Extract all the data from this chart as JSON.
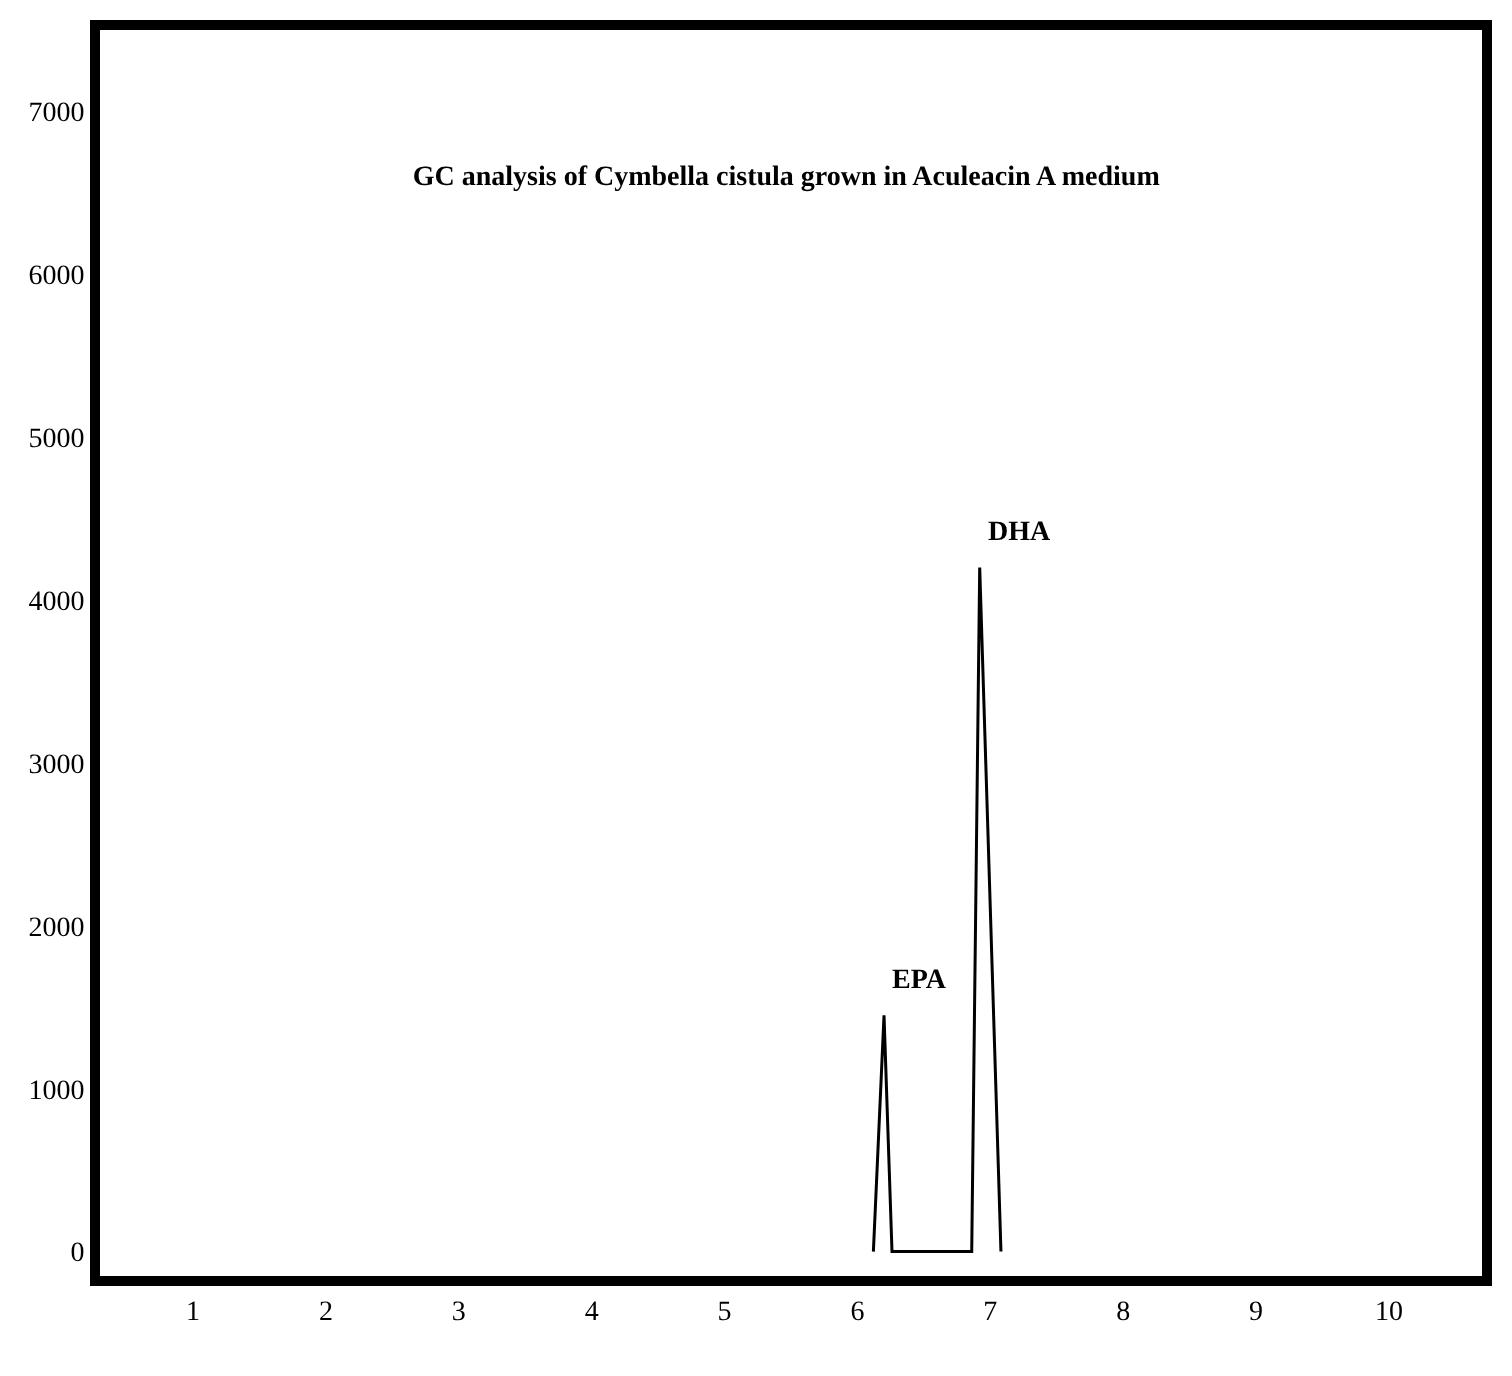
{
  "chart_data": {
    "type": "line",
    "title": "GC analysis of Cymbella cistula grown in Aculeacin A medium",
    "x": [
      6.12,
      6.2,
      6.26,
      6.86,
      6.92,
      7.08
    ],
    "series": [
      {
        "color": "#000000",
        "values": [
          0,
          1450,
          0,
          0,
          4200,
          0
        ]
      }
    ],
    "xlim": [
      0.3,
      10.7
    ],
    "xticks": [
      1,
      2,
      3,
      4,
      5,
      6,
      7,
      8,
      9,
      10
    ],
    "ylim": [
      -150,
      7500
    ],
    "yticks": [
      0,
      1000,
      2000,
      3000,
      4000,
      5000,
      6000,
      7000
    ],
    "annotations": [
      {
        "text": "EPA",
        "x": 6.2,
        "y": 1450
      },
      {
        "text": "DHA",
        "x": 6.92,
        "y": 4200
      }
    ],
    "marker": "none",
    "line_style": "solid"
  }
}
